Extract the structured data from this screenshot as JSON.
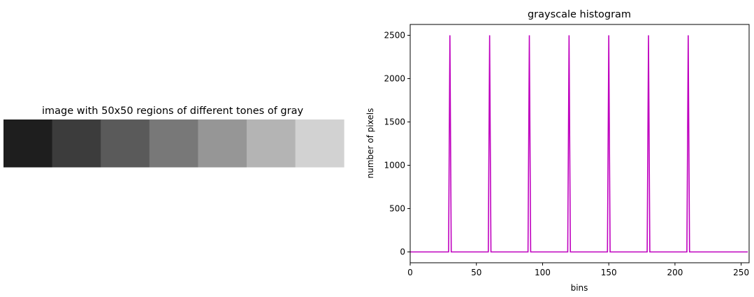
{
  "chart_data": [
    {
      "type": "heatmap",
      "title": "image with 50x50 regions of different tones of gray",
      "cells": [
        30,
        60,
        90,
        120,
        150,
        180,
        210
      ],
      "value_range": [
        0,
        255
      ],
      "region_size": "50x50"
    },
    {
      "type": "line",
      "title": "grayscale histogram",
      "xlabel": "bins",
      "ylabel": "number of pixels",
      "xlim": [
        0,
        256
      ],
      "ylim": [
        -125,
        2625
      ],
      "xticks": [
        0,
        50,
        100,
        150,
        200,
        250
      ],
      "yticks": [
        0,
        500,
        1000,
        1500,
        2000,
        2500
      ],
      "line_color": "#bf00bf",
      "series": [
        {
          "x": [
            0,
            29,
            30,
            31,
            59,
            60,
            61,
            89,
            90,
            91,
            119,
            120,
            121,
            149,
            150,
            151,
            179,
            180,
            181,
            209,
            210,
            211,
            255
          ],
          "y": [
            0,
            0,
            2500,
            0,
            0,
            2500,
            0,
            0,
            2500,
            0,
            0,
            2500,
            0,
            0,
            2500,
            0,
            0,
            2500,
            0,
            0,
            2500,
            0,
            0
          ]
        }
      ],
      "grid": false,
      "legend": false
    }
  ]
}
